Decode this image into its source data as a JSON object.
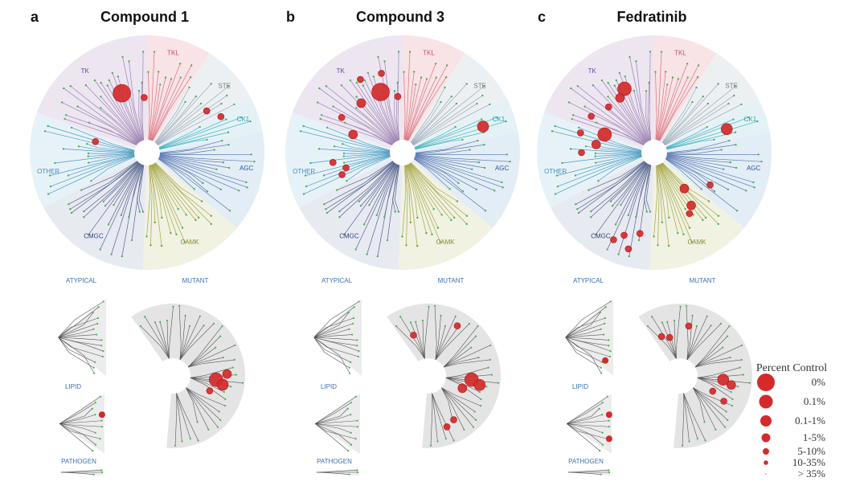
{
  "panels": [
    {
      "letter": "a",
      "title": "Compound 1"
    },
    {
      "letter": "b",
      "title": "Compound 3"
    },
    {
      "letter": "c",
      "title": "Fedratinib"
    }
  ],
  "groups": {
    "TK": "TK",
    "TKL": "TKL",
    "STE": "STE",
    "CK1": "CK1",
    "AGC": "AGC",
    "CAMK": "CAMK",
    "CMGC": "CMGC",
    "OTHER": "OTHER",
    "ATYPICAL": "ATYPICAL",
    "MUTANT": "MUTANT",
    "LIPID": "LIPID",
    "PATHOGEN": "PATHOGEN"
  },
  "colors": {
    "hit": "#d42a2a",
    "leaf": "#4caf50",
    "fan": "#e4e4e4"
  },
  "legend": {
    "title": "Percent Control",
    "entries": [
      "0%",
      "0.1%",
      "0.1-1%",
      "1-5%",
      "5-10%",
      "10-35%",
      "> 35%"
    ]
  }
}
